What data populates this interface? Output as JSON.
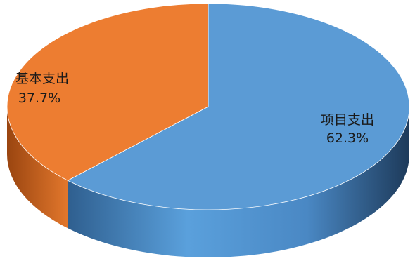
{
  "chart_data": {
    "type": "pie",
    "title": "",
    "slices": [
      {
        "label": "项目支出",
        "value": 62.3,
        "value_label": "62.3%",
        "color": "#5b9bd5",
        "side_color": "#3f72a6"
      },
      {
        "label": "基本支出",
        "value": 37.7,
        "value_label": "37.7%",
        "color": "#ed7d31",
        "side_color": "#b9581a"
      }
    ],
    "legend": "none",
    "style": "3d-exploded-none"
  }
}
